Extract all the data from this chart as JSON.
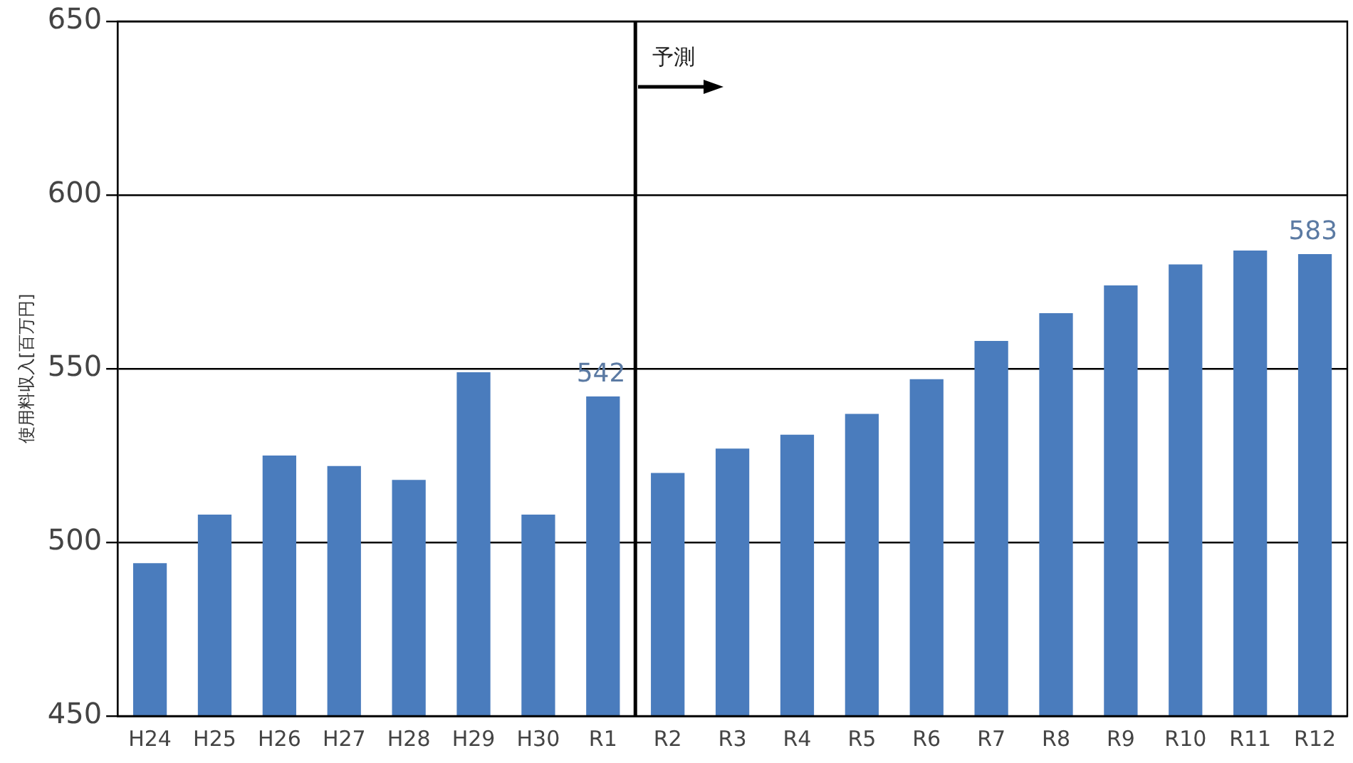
{
  "chart_data": {
    "type": "bar",
    "ylabel": "使用料収入[百万円]",
    "categories": [
      "H24",
      "H25",
      "H26",
      "H27",
      "H28",
      "H29",
      "H30",
      "R1",
      "R2",
      "R3",
      "R4",
      "R5",
      "R6",
      "R7",
      "R8",
      "R9",
      "R10",
      "R11",
      "R12"
    ],
    "values": [
      494,
      508,
      525,
      522,
      518,
      549,
      508,
      542,
      520,
      527,
      531,
      537,
      547,
      558,
      566,
      574,
      580,
      584,
      583
    ],
    "value_labels": [
      null,
      null,
      null,
      null,
      null,
      null,
      null,
      "542",
      null,
      null,
      null,
      null,
      null,
      null,
      null,
      null,
      null,
      null,
      "583"
    ],
    "color": "#4a7cbd",
    "ylim": [
      450,
      650
    ],
    "yticks": [
      450,
      500,
      550,
      600,
      650
    ],
    "grid": "y",
    "legend": false,
    "ref_lines": [
      {
        "axis": "x",
        "value": "R2",
        "label": "予測",
        "color": "#000000"
      }
    ]
  }
}
